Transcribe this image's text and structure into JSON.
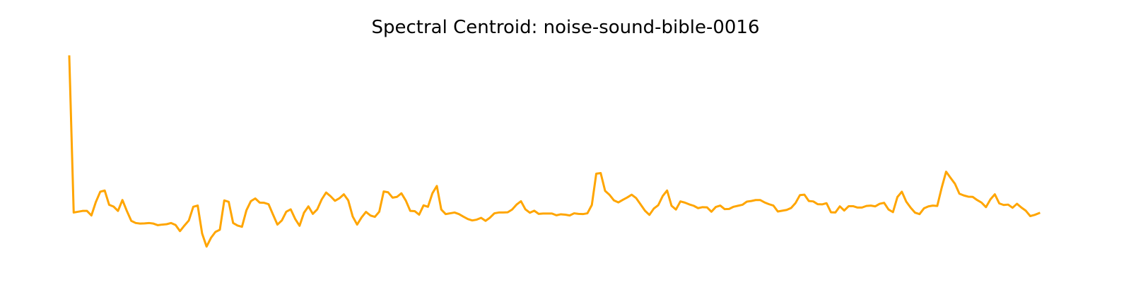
{
  "chart_data": {
    "type": "line",
    "title": "Spectral Centroid: noise-sound-bible-0016",
    "xlabel": "",
    "ylabel": "",
    "axes_visible": false,
    "grid": false,
    "line_color": "#ffa500",
    "series": [
      {
        "values": [
          1.0,
          0.212,
          0.216,
          0.22,
          0.22,
          0.197,
          0.265,
          0.317,
          0.323,
          0.251,
          0.242,
          0.22,
          0.275,
          0.22,
          0.17,
          0.159,
          0.156,
          0.157,
          0.159,
          0.156,
          0.148,
          0.151,
          0.153,
          0.159,
          0.149,
          0.118,
          0.146,
          0.172,
          0.241,
          0.247,
          0.106,
          0.04,
          0.084,
          0.114,
          0.125,
          0.273,
          0.266,
          0.159,
          0.146,
          0.14,
          0.223,
          0.269,
          0.283,
          0.262,
          0.261,
          0.254,
          0.202,
          0.151,
          0.172,
          0.216,
          0.228,
          0.18,
          0.145,
          0.211,
          0.243,
          0.205,
          0.228,
          0.278,
          0.313,
          0.294,
          0.271,
          0.284,
          0.304,
          0.273,
          0.192,
          0.151,
          0.187,
          0.215,
          0.197,
          0.19,
          0.216,
          0.318,
          0.314,
          0.287,
          0.291,
          0.309,
          0.272,
          0.22,
          0.219,
          0.201,
          0.248,
          0.241,
          0.309,
          0.346,
          0.227,
          0.204,
          0.208,
          0.212,
          0.204,
          0.191,
          0.179,
          0.172,
          0.176,
          0.185,
          0.17,
          0.186,
          0.208,
          0.212,
          0.212,
          0.213,
          0.227,
          0.252,
          0.269,
          0.228,
          0.211,
          0.221,
          0.205,
          0.207,
          0.207,
          0.207,
          0.198,
          0.203,
          0.201,
          0.197,
          0.208,
          0.205,
          0.204,
          0.208,
          0.25,
          0.408,
          0.411,
          0.321,
          0.301,
          0.273,
          0.263,
          0.276,
          0.288,
          0.302,
          0.285,
          0.253,
          0.221,
          0.2,
          0.232,
          0.249,
          0.295,
          0.323,
          0.246,
          0.227,
          0.268,
          0.262,
          0.253,
          0.246,
          0.234,
          0.239,
          0.238,
          0.216,
          0.24,
          0.247,
          0.229,
          0.23,
          0.241,
          0.246,
          0.251,
          0.267,
          0.27,
          0.275,
          0.275,
          0.263,
          0.254,
          0.247,
          0.217,
          0.221,
          0.225,
          0.235,
          0.26,
          0.3,
          0.302,
          0.27,
          0.268,
          0.254,
          0.253,
          0.259,
          0.213,
          0.212,
          0.243,
          0.222,
          0.244,
          0.244,
          0.237,
          0.237,
          0.245,
          0.247,
          0.243,
          0.256,
          0.261,
          0.227,
          0.214,
          0.29,
          0.317,
          0.267,
          0.236,
          0.211,
          0.204,
          0.233,
          0.243,
          0.247,
          0.245,
          0.337,
          0.418,
          0.387,
          0.357,
          0.307,
          0.298,
          0.292,
          0.291,
          0.275,
          0.262,
          0.239,
          0.278,
          0.304,
          0.258,
          0.25,
          0.252,
          0.236,
          0.256,
          0.237,
          0.221,
          0.194,
          0.2,
          0.209
        ]
      }
    ]
  }
}
